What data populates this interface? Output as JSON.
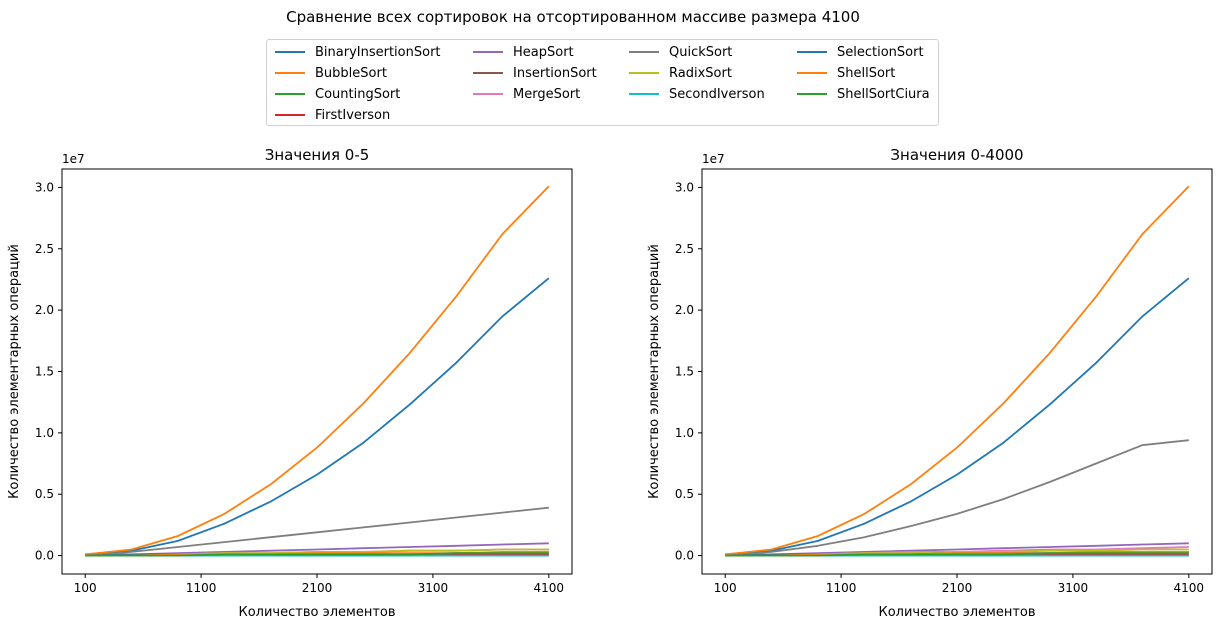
{
  "figure": {
    "suptitle": "Сравнение всех сортировок на отсортированном массиве размера 4100"
  },
  "legend": {
    "entries": [
      {
        "name": "BinaryInsertionSort",
        "color": "#1f77b4"
      },
      {
        "name": "BubbleSort",
        "color": "#ff7f0e"
      },
      {
        "name": "CountingSort",
        "color": "#2ca02c"
      },
      {
        "name": "FirstIverson",
        "color": "#d62728"
      },
      {
        "name": "HeapSort",
        "color": "#9467bd"
      },
      {
        "name": "InsertionSort",
        "color": "#8c564b"
      },
      {
        "name": "MergeSort",
        "color": "#e377c2"
      },
      {
        "name": "QuickSort",
        "color": "#7f7f7f"
      },
      {
        "name": "RadixSort",
        "color": "#bcbd22"
      },
      {
        "name": "SecondIverson",
        "color": "#17becf"
      },
      {
        "name": "SelectionSort",
        "color": "#1f77b4"
      },
      {
        "name": "ShellSort",
        "color": "#ff7f0e"
      },
      {
        "name": "ShellSortCiura",
        "color": "#2ca02c"
      }
    ]
  },
  "chart_data": [
    {
      "type": "line",
      "title": "Значения 0-5",
      "xlabel": "Количество элементов",
      "ylabel": "Количество элементарных операций",
      "y_multiplier_label": "1e7",
      "xlim": [
        100,
        4100
      ],
      "ylim": [
        -0.15,
        3.15
      ],
      "y_scale_factor": 10000000,
      "xticks": [
        100,
        1100,
        2100,
        3100,
        4100
      ],
      "xtick_labels": [
        "100",
        "1100",
        "2100",
        "3100",
        "4100"
      ],
      "yticks": [
        0.0,
        0.5,
        1.0,
        1.5,
        2.0,
        2.5,
        3.0
      ],
      "ytick_labels": [
        "0.0",
        "0.5",
        "1.0",
        "1.5",
        "2.0",
        "2.5",
        "3.0"
      ],
      "x": [
        100,
        500,
        900,
        1300,
        1700,
        2100,
        2500,
        2900,
        3300,
        3700,
        4100
      ],
      "series": [
        {
          "name": "BinaryInsertionSort",
          "color": "#1f77b4",
          "values": [
            0.01,
            0.04,
            0.12,
            0.26,
            0.44,
            0.66,
            0.92,
            1.23,
            1.57,
            1.95,
            2.26
          ]
        },
        {
          "name": "BubbleSort",
          "color": "#ff7f0e",
          "values": [
            0.01,
            0.05,
            0.16,
            0.34,
            0.58,
            0.88,
            1.24,
            1.65,
            2.11,
            2.62,
            3.01
          ]
        },
        {
          "name": "CountingSort",
          "color": "#2ca02c",
          "values": [
            0.0,
            0.0,
            0.0,
            0.0,
            0.0,
            0.0,
            0.0,
            0.0,
            0.0,
            0.0,
            0.0
          ]
        },
        {
          "name": "FirstIverson",
          "color": "#d62728",
          "values": [
            0.0,
            0.0,
            0.0,
            0.0,
            0.01,
            0.01,
            0.01,
            0.01,
            0.01,
            0.01,
            0.01
          ]
        },
        {
          "name": "HeapSort",
          "color": "#9467bd",
          "values": [
            0.0,
            0.01,
            0.02,
            0.03,
            0.04,
            0.05,
            0.06,
            0.07,
            0.08,
            0.09,
            0.1
          ]
        },
        {
          "name": "InsertionSort",
          "color": "#8c564b",
          "values": [
            0.0,
            0.0,
            0.0,
            0.0,
            0.0,
            0.0,
            0.0,
            0.0,
            0.0,
            0.0,
            0.0
          ]
        },
        {
          "name": "MergeSort",
          "color": "#e377c2",
          "values": [
            0.0,
            0.01,
            0.01,
            0.02,
            0.02,
            0.03,
            0.03,
            0.04,
            0.04,
            0.05,
            0.05
          ]
        },
        {
          "name": "QuickSort",
          "color": "#7f7f7f",
          "values": [
            0.0,
            0.03,
            0.07,
            0.11,
            0.15,
            0.19,
            0.23,
            0.27,
            0.31,
            0.35,
            0.39
          ]
        },
        {
          "name": "RadixSort",
          "color": "#bcbd22",
          "values": [
            0.0,
            0.01,
            0.01,
            0.02,
            0.02,
            0.03,
            0.03,
            0.04,
            0.04,
            0.05,
            0.05
          ]
        },
        {
          "name": "SecondIverson",
          "color": "#17becf",
          "values": [
            0.0,
            0.0,
            0.0,
            0.0,
            0.0,
            0.0,
            0.0,
            0.0,
            0.0,
            0.0,
            0.0
          ]
        },
        {
          "name": "SelectionSort",
          "color": "#1f77b4",
          "values": [
            0.0,
            0.01,
            0.01,
            0.01,
            0.01,
            0.01,
            0.01,
            0.01,
            0.02,
            0.02,
            0.02
          ]
        },
        {
          "name": "ShellSort",
          "color": "#ff7f0e",
          "values": [
            0.0,
            0.0,
            0.01,
            0.01,
            0.01,
            0.02,
            0.02,
            0.02,
            0.02,
            0.03,
            0.03
          ]
        },
        {
          "name": "ShellSortCiura",
          "color": "#2ca02c",
          "values": [
            0.0,
            0.0,
            0.0,
            0.01,
            0.01,
            0.01,
            0.01,
            0.01,
            0.02,
            0.02,
            0.02
          ]
        }
      ]
    },
    {
      "type": "line",
      "title": "Значения 0-4000",
      "xlabel": "Количество элементов",
      "ylabel": "Количество элементарных операций",
      "y_multiplier_label": "1e7",
      "xlim": [
        100,
        4100
      ],
      "ylim": [
        -0.15,
        3.15
      ],
      "y_scale_factor": 10000000,
      "xticks": [
        100,
        1100,
        2100,
        3100,
        4100
      ],
      "xtick_labels": [
        "100",
        "1100",
        "2100",
        "3100",
        "4100"
      ],
      "yticks": [
        0.0,
        0.5,
        1.0,
        1.5,
        2.0,
        2.5,
        3.0
      ],
      "ytick_labels": [
        "0.0",
        "0.5",
        "1.0",
        "1.5",
        "2.0",
        "2.5",
        "3.0"
      ],
      "x": [
        100,
        500,
        900,
        1300,
        1700,
        2100,
        2500,
        2900,
        3300,
        3700,
        4100
      ],
      "series": [
        {
          "name": "BinaryInsertionSort",
          "color": "#1f77b4",
          "values": [
            0.01,
            0.04,
            0.12,
            0.26,
            0.44,
            0.66,
            0.92,
            1.23,
            1.57,
            1.95,
            2.26
          ]
        },
        {
          "name": "BubbleSort",
          "color": "#ff7f0e",
          "values": [
            0.01,
            0.05,
            0.16,
            0.34,
            0.58,
            0.88,
            1.24,
            1.65,
            2.11,
            2.62,
            3.01
          ]
        },
        {
          "name": "CountingSort",
          "color": "#2ca02c",
          "values": [
            0.0,
            0.0,
            0.0,
            0.0,
            0.0,
            0.0,
            0.0,
            0.0,
            0.0,
            0.0,
            0.0
          ]
        },
        {
          "name": "FirstIverson",
          "color": "#d62728",
          "values": [
            0.0,
            0.0,
            0.0,
            0.0,
            0.01,
            0.01,
            0.01,
            0.01,
            0.01,
            0.01,
            0.01
          ]
        },
        {
          "name": "HeapSort",
          "color": "#9467bd",
          "values": [
            0.0,
            0.01,
            0.02,
            0.03,
            0.04,
            0.05,
            0.06,
            0.07,
            0.08,
            0.09,
            0.1
          ]
        },
        {
          "name": "InsertionSort",
          "color": "#8c564b",
          "values": [
            0.0,
            0.0,
            0.0,
            0.0,
            0.0,
            0.0,
            0.0,
            0.0,
            0.0,
            0.0,
            0.0
          ]
        },
        {
          "name": "MergeSort",
          "color": "#e377c2",
          "values": [
            0.0,
            0.01,
            0.01,
            0.02,
            0.03,
            0.03,
            0.04,
            0.05,
            0.05,
            0.06,
            0.07
          ]
        },
        {
          "name": "QuickSort",
          "color": "#7f7f7f",
          "values": [
            0.0,
            0.03,
            0.08,
            0.15,
            0.24,
            0.34,
            0.46,
            0.6,
            0.75,
            0.9,
            0.94
          ]
        },
        {
          "name": "RadixSort",
          "color": "#bcbd22",
          "values": [
            0.0,
            0.01,
            0.01,
            0.02,
            0.02,
            0.03,
            0.03,
            0.04,
            0.04,
            0.05,
            0.05
          ]
        },
        {
          "name": "SecondIverson",
          "color": "#17becf",
          "values": [
            0.0,
            0.0,
            0.0,
            0.0,
            0.0,
            0.0,
            0.0,
            0.0,
            0.0,
            0.0,
            0.0
          ]
        },
        {
          "name": "SelectionSort",
          "color": "#1f77b4",
          "values": [
            0.0,
            0.01,
            0.01,
            0.01,
            0.01,
            0.02,
            0.02,
            0.02,
            0.02,
            0.03,
            0.03
          ]
        },
        {
          "name": "ShellSort",
          "color": "#ff7f0e",
          "values": [
            0.0,
            0.0,
            0.01,
            0.01,
            0.01,
            0.02,
            0.02,
            0.02,
            0.03,
            0.03,
            0.03
          ]
        },
        {
          "name": "ShellSortCiura",
          "color": "#2ca02c",
          "values": [
            0.0,
            0.0,
            0.0,
            0.01,
            0.01,
            0.01,
            0.01,
            0.02,
            0.02,
            0.02,
            0.02
          ]
        }
      ]
    }
  ]
}
